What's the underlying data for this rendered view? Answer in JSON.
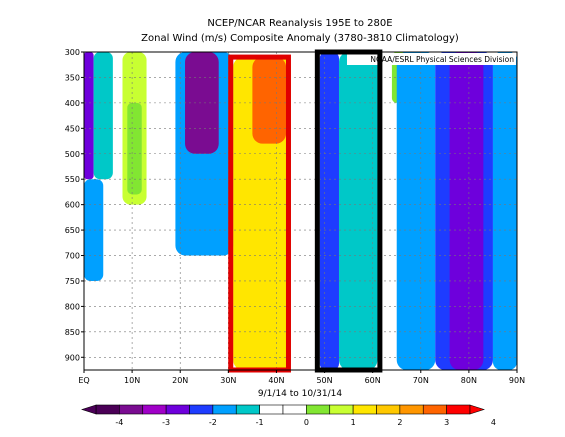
{
  "chart_data": {
    "type": "heatmap",
    "title": "NCEP/NCAR Reanalysis 195E to 280E",
    "subtitle": "Zonal Wind (m/s) Composite Anomaly (3780-3810 Climatology)",
    "watermark": "NOAA/ESRL Physical Sciences Division",
    "xlabel": "9/1/14  to 10/31/14",
    "x_ticks": [
      "EQ",
      "10N",
      "20N",
      "30N",
      "40N",
      "50N",
      "60N",
      "70N",
      "80N",
      "90N"
    ],
    "y_ticks": [
      "300",
      "350",
      "400",
      "450",
      "500",
      "550",
      "600",
      "650",
      "700",
      "750",
      "800",
      "850",
      "900"
    ],
    "xlim": [
      0,
      90
    ],
    "ylim_hpa": [
      925,
      300
    ],
    "y_axis_inverted": true,
    "grid": true,
    "colorbar_ticks": [
      "-4",
      "-3",
      "-2",
      "-1",
      "0",
      "1",
      "2",
      "3",
      "4"
    ],
    "colorbar_colors": [
      "#4b0057",
      "#7a0c91",
      "#a000c8",
      "#6e00dc",
      "#1e3cff",
      "#00a0ff",
      "#00c8c8",
      "#ffffff",
      "#ffffff",
      "#82e632",
      "#c8ff32",
      "#ffe600",
      "#ffc800",
      "#ff9600",
      "#ff6400",
      "#ff0000"
    ],
    "highlight_boxes": [
      {
        "color": "#e00000",
        "x_range_deg": [
          30.5,
          42.5
        ],
        "p_range_hpa": [
          310,
          925
        ]
      },
      {
        "color": "#000000",
        "x_range_deg": [
          48.5,
          61.5
        ],
        "p_range_hpa": [
          300,
          925
        ]
      }
    ],
    "bands": [
      {
        "x_range_deg": [
          0,
          2
        ],
        "p_range_hpa": [
          300,
          550
        ],
        "value": -2.5,
        "color": "#6e00dc"
      },
      {
        "x_range_deg": [
          2,
          6
        ],
        "p_range_hpa": [
          300,
          550
        ],
        "value": -0.5,
        "color": "#00c8c8"
      },
      {
        "x_range_deg": [
          0,
          4
        ],
        "p_range_hpa": [
          550,
          750
        ],
        "value": -1.5,
        "color": "#00a0ff"
      },
      {
        "x_range_deg": [
          7,
          17
        ],
        "p_range_hpa": [
          300,
          925
        ],
        "value": 0.0,
        "color": "#ffffff"
      },
      {
        "x_range_deg": [
          8,
          13
        ],
        "p_range_hpa": [
          300,
          600
        ],
        "value": 1.5,
        "color": "#c8ff32"
      },
      {
        "x_range_deg": [
          9,
          12
        ],
        "p_range_hpa": [
          400,
          580
        ],
        "value": 1.0,
        "color": "#82e632"
      },
      {
        "x_range_deg": [
          19,
          31
        ],
        "p_range_hpa": [
          300,
          700
        ],
        "value": -1.5,
        "color": "#00a0ff"
      },
      {
        "x_range_deg": [
          21,
          28
        ],
        "p_range_hpa": [
          300,
          500
        ],
        "value": -3.5,
        "color": "#7a0c91"
      },
      {
        "x_range_deg": [
          31,
          43
        ],
        "p_range_hpa": [
          310,
          925
        ],
        "value": 2.0,
        "color": "#ffe600"
      },
      {
        "x_range_deg": [
          35,
          42
        ],
        "p_range_hpa": [
          310,
          480
        ],
        "value": 3.5,
        "color": "#ff6400"
      },
      {
        "x_range_deg": [
          49,
          53
        ],
        "p_range_hpa": [
          300,
          925
        ],
        "value": -2.0,
        "color": "#1e3cff"
      },
      {
        "x_range_deg": [
          53,
          61
        ],
        "p_range_hpa": [
          300,
          925
        ],
        "value": -1.0,
        "color": "#00c8c8"
      },
      {
        "x_range_deg": [
          64,
          67
        ],
        "p_range_hpa": [
          300,
          400
        ],
        "value": 1.0,
        "color": "#82e632"
      },
      {
        "x_range_deg": [
          65,
          73
        ],
        "p_range_hpa": [
          300,
          925
        ],
        "value": -1.0,
        "color": "#00a0ff"
      },
      {
        "x_range_deg": [
          73,
          85
        ],
        "p_range_hpa": [
          300,
          925
        ],
        "value": -2.0,
        "color": "#1e3cff"
      },
      {
        "x_range_deg": [
          76,
          83
        ],
        "p_range_hpa": [
          300,
          925
        ],
        "value": -3.0,
        "color": "#6e00dc"
      },
      {
        "x_range_deg": [
          85,
          90
        ],
        "p_range_hpa": [
          300,
          925
        ],
        "value": -1.0,
        "color": "#00a0ff"
      }
    ]
  }
}
